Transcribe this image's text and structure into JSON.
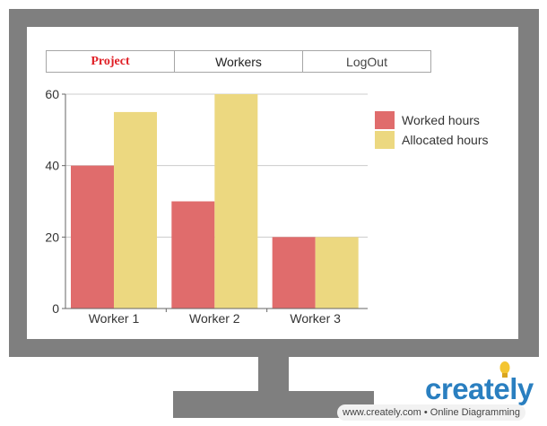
{
  "nav": {
    "tabs": [
      {
        "label": "Project",
        "active": true
      },
      {
        "label": "Workers"
      },
      {
        "label": "LogOut"
      }
    ]
  },
  "chart_data": {
    "type": "bar",
    "categories": [
      "Worker 1",
      "Worker 2",
      "Worker 3"
    ],
    "series": [
      {
        "name": "Worked hours",
        "values": [
          40,
          30,
          20
        ],
        "color": "#e06c6c"
      },
      {
        "name": "Allocated hours",
        "values": [
          55,
          60,
          20
        ],
        "color": "#ecd880"
      }
    ],
    "yticks": [
      0,
      20,
      40,
      60
    ],
    "ylim": [
      0,
      60
    ],
    "grid": true,
    "legend_position": "right"
  },
  "brand": {
    "logo_text": "creately",
    "tagline": "www.creately.com • Online Diagramming"
  }
}
